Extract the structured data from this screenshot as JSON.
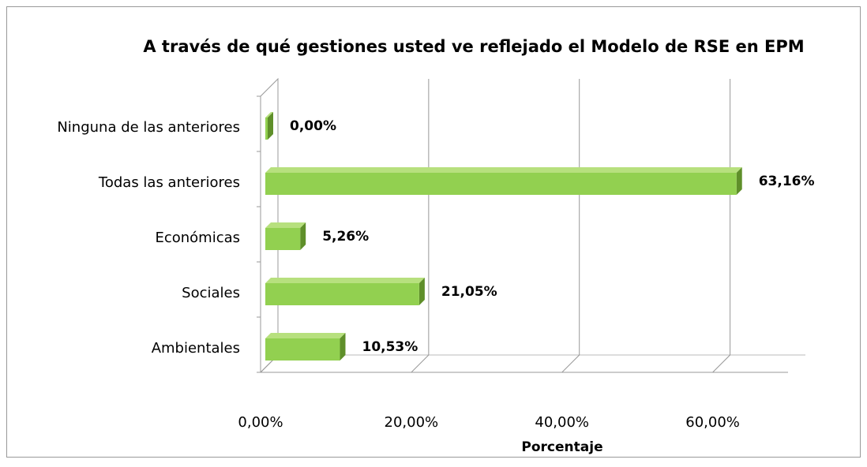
{
  "chart_data": {
    "type": "bar3d_horizontal",
    "title": "A través de qué gestiones usted ve reflejado el Modelo de RSE en EPM",
    "categories": [
      "Ambientales",
      "Sociales",
      "Económicas",
      "Todas las anteriores",
      "Ninguna de las anteriores"
    ],
    "values": [
      10.53,
      21.05,
      5.26,
      63.16,
      0
    ],
    "value_labels": [
      "10,53%",
      "21,05%",
      "5,26%",
      "63,16%",
      "0,00%"
    ],
    "color": "#92d050",
    "xlabel": "Porcentaje",
    "xlim": [
      0,
      70
    ],
    "xticks": [
      {
        "value": 0,
        "label": "0,00%"
      },
      {
        "value": 20,
        "label": "20,00%"
      },
      {
        "value": 40,
        "label": "40,00%"
      },
      {
        "value": 60,
        "label": "60,00%"
      }
    ],
    "grid": true
  }
}
